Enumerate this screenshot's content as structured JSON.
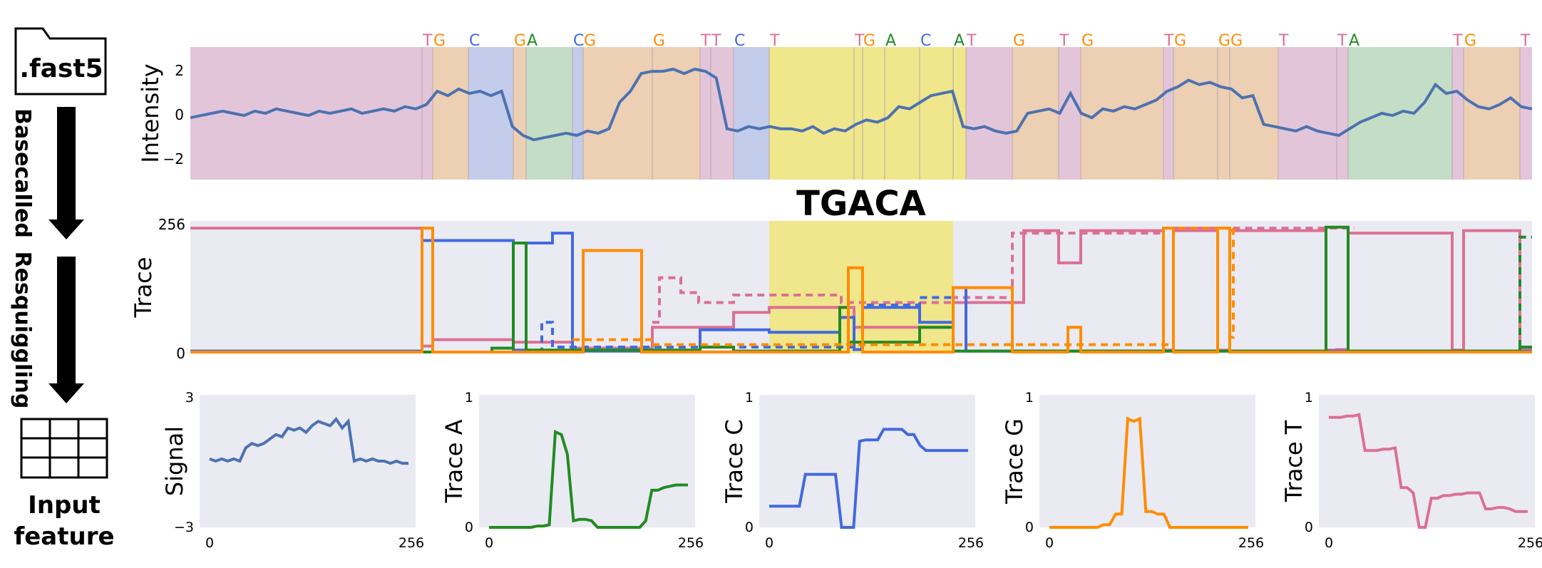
{
  "pipeline": {
    "file_label": ".fast5",
    "step1": "Basecalled",
    "step2": "Resquiggling",
    "output_line1": "Input",
    "output_line2": "feature",
    "file_icon": "folder-file-icon",
    "table_icon": "table-grid-icon"
  },
  "colors": {
    "A": "#228B22",
    "C": "#4169E1",
    "G": "#FF8C00",
    "T": "#DB7093",
    "signal": "#4C72B0",
    "panel_bg": "#EAEAF2",
    "highlight": "#F0E68C"
  },
  "intensity_panel": {
    "ylabel": "Intensity",
    "yticks": [
      "2",
      "0",
      "−2"
    ],
    "bases": [
      "T",
      "G",
      "C",
      "G",
      "A",
      "C",
      "G",
      "G",
      "T",
      "T",
      "C",
      "T",
      "T",
      "G",
      "A",
      "C",
      "A",
      "T",
      "G",
      "T",
      "G",
      "T",
      "G",
      "G",
      "G",
      "T",
      "T",
      "A",
      "T",
      "G",
      "T"
    ],
    "signal": [
      -0.2,
      -0.1,
      0.0,
      0.1,
      0.0,
      -0.1,
      0.1,
      0.0,
      0.2,
      0.1,
      0.0,
      -0.1,
      0.1,
      0.0,
      0.1,
      0.2,
      0.0,
      0.1,
      0.2,
      0.1,
      0.3,
      0.2,
      0.4,
      1.0,
      0.8,
      1.1,
      0.9,
      1.0,
      0.8,
      1.0,
      -0.6,
      -1.0,
      -1.2,
      -1.1,
      -1.0,
      -0.9,
      -1.0,
      -0.8,
      -0.9,
      -0.7,
      0.5,
      1.0,
      1.8,
      1.9,
      1.9,
      2.0,
      1.8,
      2.0,
      1.9,
      1.6,
      -0.7,
      -0.8,
      -0.6,
      -0.7,
      -0.6,
      -0.7,
      -0.7,
      -0.8,
      -0.6,
      -0.9,
      -0.7,
      -0.8,
      -0.5,
      -0.3,
      -0.4,
      -0.2,
      0.3,
      0.2,
      0.5,
      0.8,
      0.9,
      1.0,
      -0.6,
      -0.7,
      -0.6,
      -0.8,
      -0.9,
      -0.8,
      0.0,
      0.1,
      0.2,
      0.0,
      0.9,
      0.0,
      -0.2,
      0.2,
      0.1,
      0.3,
      0.2,
      0.4,
      0.6,
      1.0,
      1.2,
      1.5,
      1.3,
      1.4,
      1.2,
      1.1,
      0.7,
      0.8,
      -0.5,
      -0.6,
      -0.7,
      -0.8,
      -0.6,
      -0.8,
      -0.9,
      -1.0,
      -0.7,
      -0.4,
      -0.2,
      0.0,
      -0.1,
      0.1,
      0.0,
      0.5,
      1.3,
      0.9,
      1.0,
      0.6,
      0.3,
      0.2,
      0.4,
      0.7,
      0.3,
      0.2
    ],
    "highlight_label": "TGACA"
  },
  "trace_panel": {
    "ylabel": "Trace",
    "yticks": [
      "256",
      "0"
    ]
  },
  "feature_panels": [
    {
      "ylabel": "Signal",
      "ymax": "3",
      "ymin": "−3",
      "xmin": "0",
      "xmax": "256",
      "color_key": "signal",
      "values": [
        0.1,
        0.0,
        0.1,
        0.0,
        0.1,
        0.0,
        0.6,
        0.8,
        0.7,
        0.8,
        1.0,
        1.2,
        1.1,
        1.5,
        1.4,
        1.5,
        1.3,
        1.6,
        1.8,
        1.7,
        1.6,
        1.9,
        1.5,
        1.8,
        0.0,
        0.1,
        0.0,
        0.1,
        0.0,
        0.0,
        -0.1,
        0.0,
        -0.1,
        -0.1
      ]
    },
    {
      "ylabel": "Trace A",
      "ymax": "1",
      "ymin": "0",
      "xmin": "0",
      "xmax": "256",
      "color_key": "A",
      "values": [
        0.0,
        0.0,
        0.0,
        0.0,
        0.0,
        0.0,
        0.0,
        0.0,
        0.01,
        0.01,
        0.02,
        0.72,
        0.7,
        0.55,
        0.05,
        0.06,
        0.06,
        0.05,
        0.0,
        0.0,
        0.0,
        0.0,
        0.0,
        0.0,
        0.0,
        0.0,
        0.05,
        0.28,
        0.28,
        0.3,
        0.31,
        0.32,
        0.32,
        0.32
      ]
    },
    {
      "ylabel": "Trace C",
      "ymax": "1",
      "ymin": "0",
      "xmin": "0",
      "xmax": "256",
      "color_key": "C",
      "values": [
        0.16,
        0.16,
        0.16,
        0.16,
        0.16,
        0.16,
        0.4,
        0.4,
        0.4,
        0.4,
        0.4,
        0.4,
        0.0,
        0.0,
        0.0,
        0.65,
        0.66,
        0.66,
        0.66,
        0.74,
        0.74,
        0.74,
        0.74,
        0.7,
        0.7,
        0.62,
        0.58,
        0.58,
        0.58,
        0.58,
        0.58,
        0.58,
        0.58,
        0.58
      ]
    },
    {
      "ylabel": "Trace G",
      "ymax": "1",
      "ymin": "0",
      "xmin": "0",
      "xmax": "256",
      "color_key": "G",
      "values": [
        0.0,
        0.0,
        0.0,
        0.0,
        0.0,
        0.0,
        0.0,
        0.0,
        0.0,
        0.02,
        0.02,
        0.1,
        0.1,
        0.82,
        0.8,
        0.82,
        0.12,
        0.12,
        0.1,
        0.1,
        0.0,
        0.0,
        0.0,
        0.0,
        0.0,
        0.0,
        0.0,
        0.0,
        0.0,
        0.0,
        0.0,
        0.0,
        0.0,
        0.0
      ]
    },
    {
      "ylabel": "Trace T",
      "ymax": "1",
      "ymin": "0",
      "xmin": "0",
      "xmax": "256",
      "color_key": "T",
      "values": [
        0.83,
        0.83,
        0.83,
        0.84,
        0.84,
        0.85,
        0.58,
        0.58,
        0.58,
        0.59,
        0.59,
        0.6,
        0.3,
        0.3,
        0.26,
        0.0,
        0.0,
        0.22,
        0.22,
        0.24,
        0.24,
        0.25,
        0.25,
        0.26,
        0.26,
        0.26,
        0.14,
        0.14,
        0.15,
        0.15,
        0.14,
        0.12,
        0.12,
        0.12
      ]
    }
  ]
}
